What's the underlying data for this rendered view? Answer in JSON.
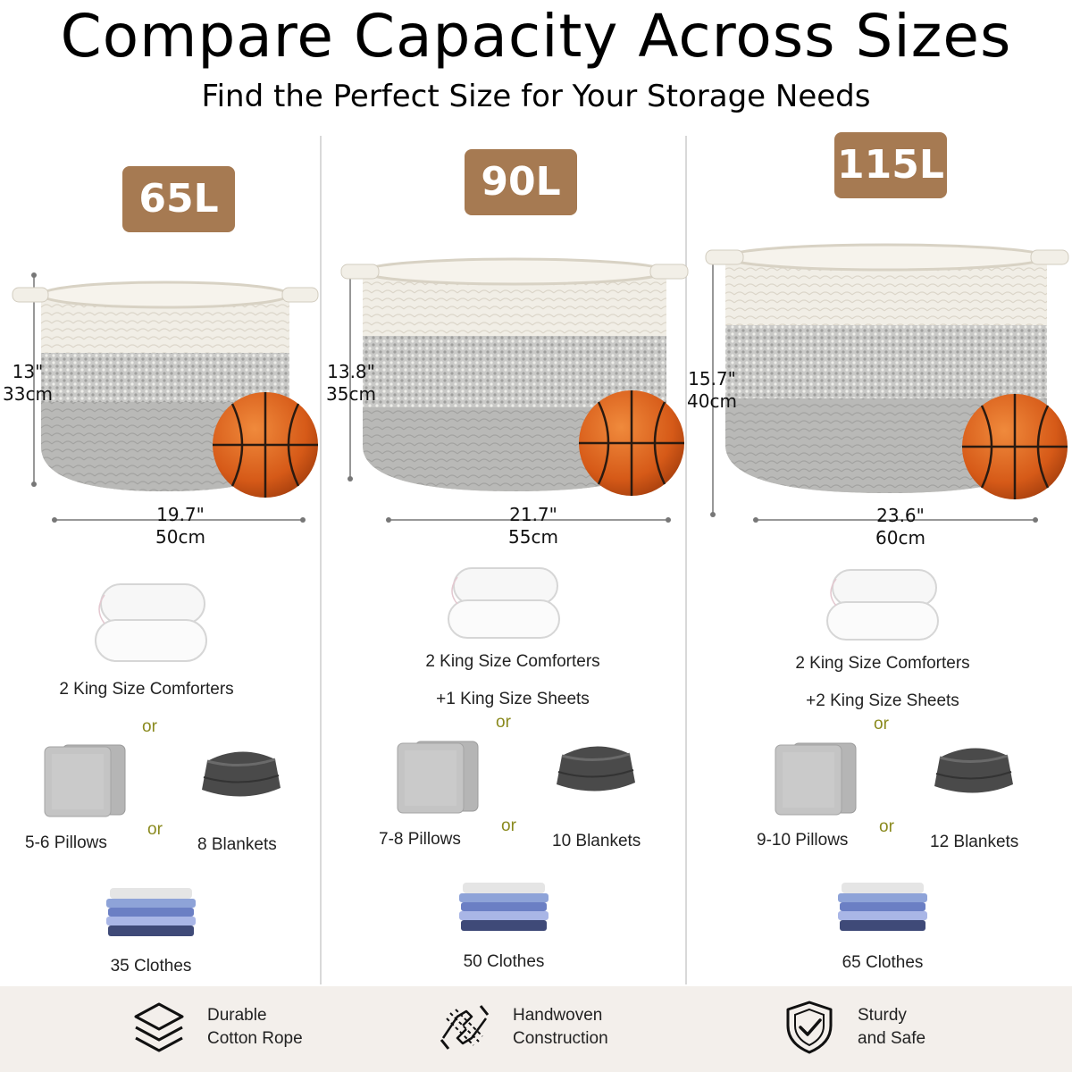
{
  "title": "Compare Capacity Across Sizes",
  "subtitle": "Find the Perfect Size for Your Storage Needs",
  "columns": [
    {
      "capacity": "65L",
      "height_in": "13\"",
      "height_cm": "33cm",
      "width_in": "19.7\"",
      "width_cm": "50cm",
      "comforters": "2 King Size Comforters",
      "sheets": "",
      "or1": "or",
      "pillows": "5-6 Pillows",
      "or2": "or",
      "blankets": "8 Blankets",
      "clothes": "35 Clothes"
    },
    {
      "capacity": "90L",
      "height_in": "13.8\"",
      "height_cm": "35cm",
      "width_in": "21.7\"",
      "width_cm": "55cm",
      "comforters": "2 King Size Comforters",
      "sheets": "+1 King Size Sheets",
      "or1": "or",
      "pillows": "7-8 Pillows",
      "or2": "or",
      "blankets": "10 Blankets",
      "clothes": "50 Clothes"
    },
    {
      "capacity": "115L",
      "height_in": "15.7\"",
      "height_cm": "40cm",
      "width_in": "23.6\"",
      "width_cm": "60cm",
      "comforters": "2 King Size Comforters",
      "sheets": "+2 King Size Sheets",
      "or1": "or",
      "pillows": "9-10 Pillows",
      "or2": "or",
      "blankets": "12 Blankets",
      "clothes": "65 Clothes"
    }
  ],
  "features": [
    {
      "line1": "Durable",
      "line2": "Cotton Rope",
      "icon": "layers-icon"
    },
    {
      "line1": "Handwoven",
      "line2": "Construction",
      "icon": "hands-icon"
    },
    {
      "line1": "Sturdy",
      "line2": "and Safe",
      "icon": "shield-check-icon"
    }
  ],
  "colors": {
    "badge": "#a67a52",
    "rope_white": "#f2efe7",
    "rope_gray": "#b8b8b6",
    "ball": "#d9621e",
    "or_text": "#8a8a1e"
  }
}
